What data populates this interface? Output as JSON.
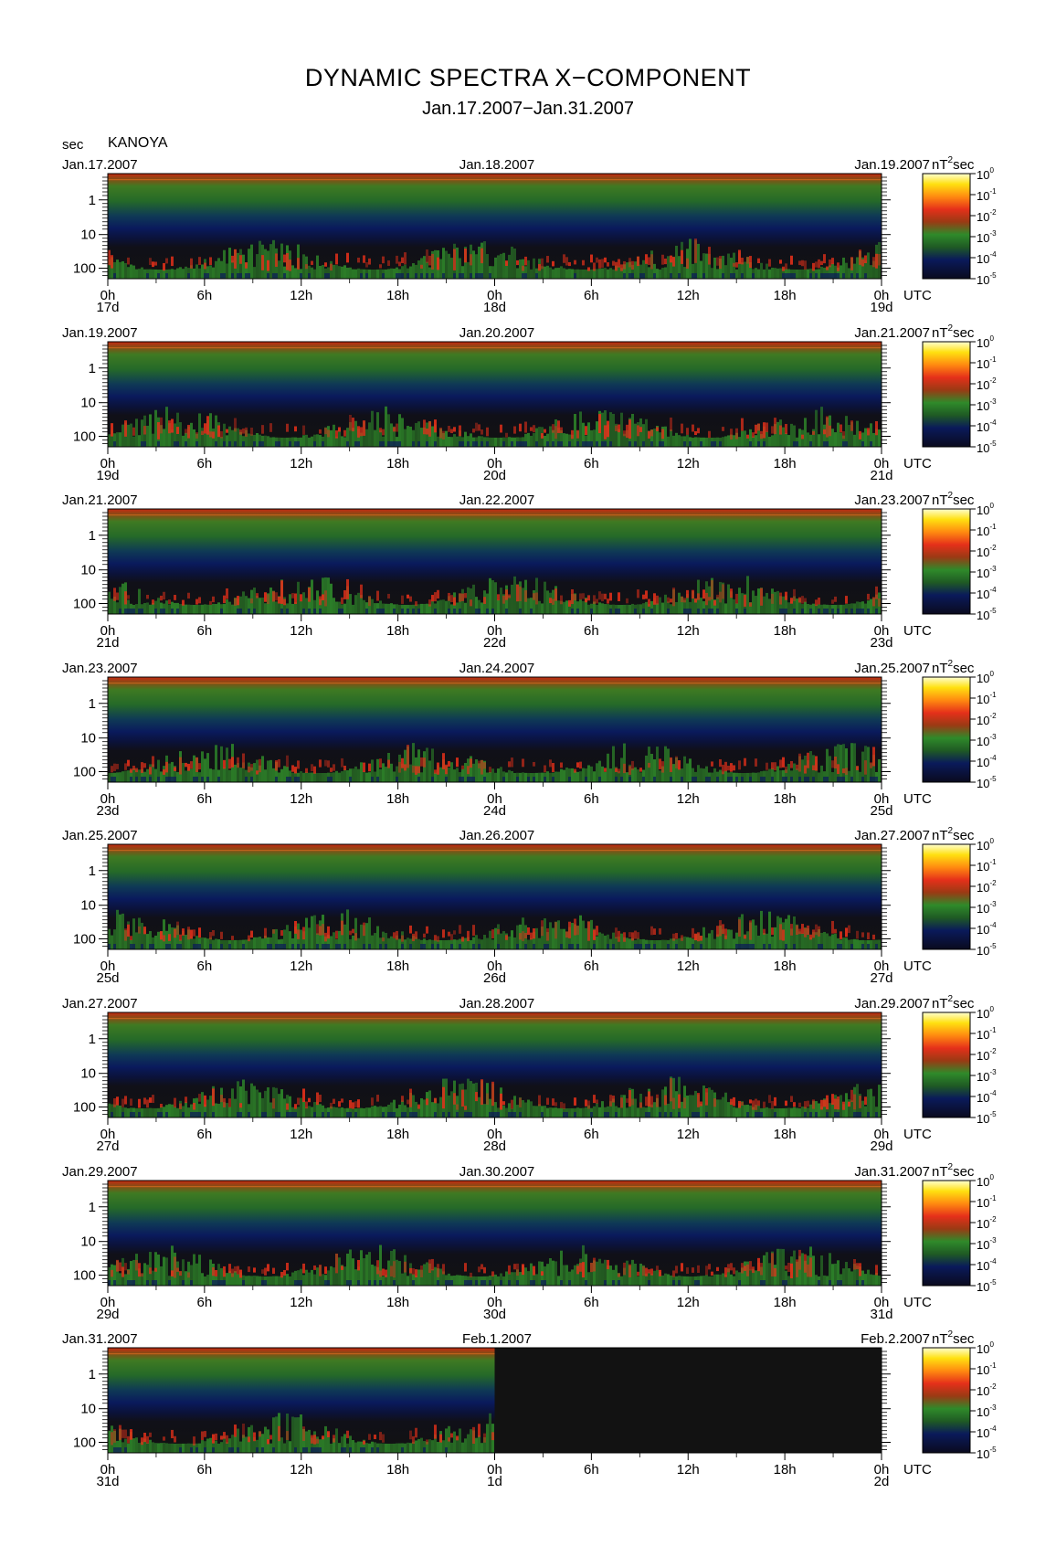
{
  "title": "DYNAMIC SPECTRA X−COMPONENT",
  "subtitle": "Jan.17.2007−Jan.31.2007",
  "y_unit": "sec",
  "station": "KANOYA",
  "colorbar_unit": "nT",
  "colorbar_unit_exp": "2",
  "colorbar_unit_suffix": "sec",
  "colorbar_ticks": [
    {
      "base": "10",
      "exp": "0"
    },
    {
      "base": "10",
      "exp": "-1"
    },
    {
      "base": "10",
      "exp": "-2"
    },
    {
      "base": "10",
      "exp": "-3"
    },
    {
      "base": "10",
      "exp": "-4"
    },
    {
      "base": "10",
      "exp": "-5"
    }
  ],
  "colors": {
    "dark_bg": "#121212",
    "navy": "#0a1a5a",
    "green": "#2f8a2a",
    "red": "#e5301a",
    "yellow": "#ffe010"
  },
  "chart_data": {
    "type": "heatmap",
    "x_tick_labels": [
      "0h",
      "6h",
      "12h",
      "18h",
      "0h",
      "6h",
      "12h",
      "18h",
      "0h"
    ],
    "x_unit_label": "UTC",
    "y_tick_labels": [
      "1",
      "10",
      "100"
    ],
    "y_scale": "log",
    "colorbar_scale": "log",
    "colorbar_range": [
      1e-05,
      1
    ],
    "panels": [
      {
        "date_left": "Jan.17.2007",
        "date_mid": "Jan.18.2007",
        "date_right": "Jan.19.2007",
        "day_left": "17d",
        "day_mid": "18d",
        "day_right": "19d",
        "data_fraction": 1.0
      },
      {
        "date_left": "Jan.19.2007",
        "date_mid": "Jan.20.2007",
        "date_right": "Jan.21.2007",
        "day_left": "19d",
        "day_mid": "20d",
        "day_right": "21d",
        "data_fraction": 1.0
      },
      {
        "date_left": "Jan.21.2007",
        "date_mid": "Jan.22.2007",
        "date_right": "Jan.23.2007",
        "day_left": "21d",
        "day_mid": "22d",
        "day_right": "23d",
        "data_fraction": 1.0
      },
      {
        "date_left": "Jan.23.2007",
        "date_mid": "Jan.24.2007",
        "date_right": "Jan.25.2007",
        "day_left": "23d",
        "day_mid": "24d",
        "day_right": "25d",
        "data_fraction": 1.0
      },
      {
        "date_left": "Jan.25.2007",
        "date_mid": "Jan.26.2007",
        "date_right": "Jan.27.2007",
        "day_left": "25d",
        "day_mid": "26d",
        "day_right": "27d",
        "data_fraction": 1.0
      },
      {
        "date_left": "Jan.27.2007",
        "date_mid": "Jan.28.2007",
        "date_right": "Jan.29.2007",
        "day_left": "27d",
        "day_mid": "28d",
        "day_right": "29d",
        "data_fraction": 1.0
      },
      {
        "date_left": "Jan.29.2007",
        "date_mid": "Jan.30.2007",
        "date_right": "Jan.31.2007",
        "day_left": "29d",
        "day_mid": "30d",
        "day_right": "31d",
        "data_fraction": 1.0
      },
      {
        "date_left": "Jan.31.2007",
        "date_mid": "Feb.1.2007",
        "date_right": "Feb.2.2007",
        "day_left": "31d",
        "day_mid": "1d",
        "day_right": "2d",
        "data_fraction": 0.5
      }
    ]
  }
}
